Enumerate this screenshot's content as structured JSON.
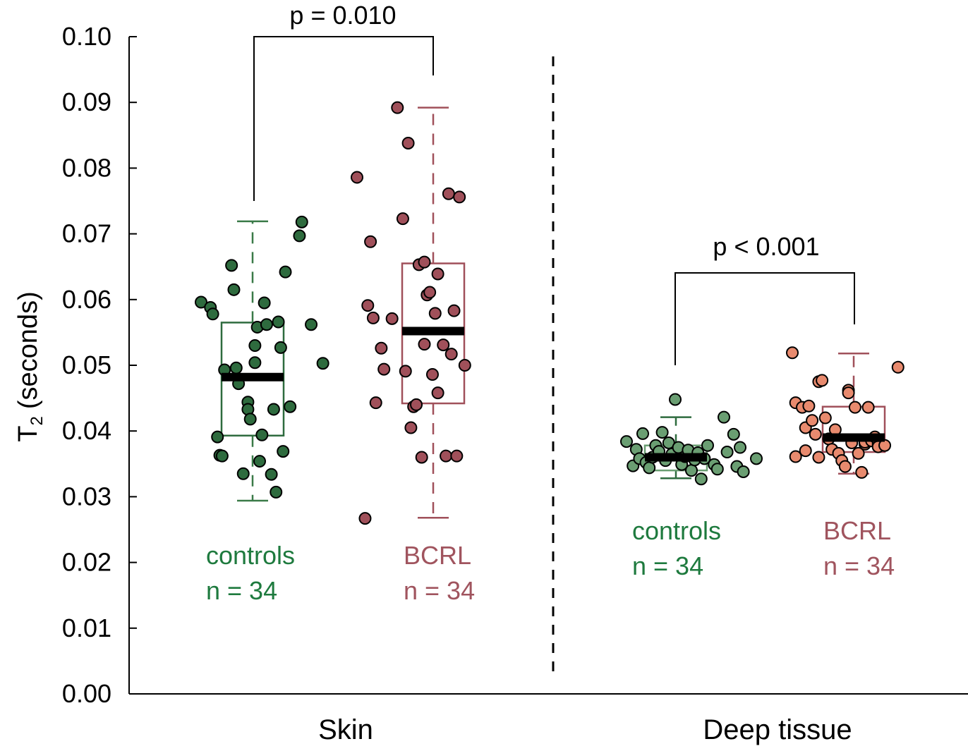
{
  "colors": {
    "skin_controls": "#2e6b3e",
    "skin_controls_text": "#1e7a3e",
    "skin_bcrl": "#a0505a",
    "skin_bcrl_text": "#a0545e",
    "deep_controls": "#6a9e72",
    "deep_controls_text": "#1e7a3e",
    "deep_bcrl": "#e88a6e",
    "deep_bcrl_box": "#a0505a",
    "deep_bcrl_text": "#a0545e"
  },
  "chart_data": {
    "type": "box",
    "ylabel_main": "T",
    "ylabel_sub": "2",
    "ylabel_rest": "(seconds)",
    "ylim": [
      0,
      0.1
    ],
    "yticks": [
      "0.00",
      "0.01",
      "0.02",
      "0.03",
      "0.04",
      "0.05",
      "0.06",
      "0.07",
      "0.08",
      "0.09",
      "0.10"
    ],
    "categories": [
      "Skin",
      "Deep tissue"
    ],
    "comparisons": [
      {
        "label": "p = 0.010",
        "group_a": "skin_controls",
        "group_b": "skin_bcrl"
      },
      {
        "label": "p < 0.001",
        "group_a": "deep_controls",
        "group_b": "deep_bcrl"
      }
    ],
    "groups": [
      {
        "id": "skin_controls",
        "category": "Skin",
        "name": "controls",
        "n_label": "n = 34",
        "box": {
          "q1": 0.0393,
          "median": 0.0482,
          "q3": 0.0565,
          "whisker_low": 0.0294,
          "whisker_high": 0.0719
        },
        "points": [
          {
            "x": 0.0,
            "y": 0.0596
          },
          {
            "x": 0.04,
            "y": 0.0588
          },
          {
            "x": 0.05,
            "y": 0.0578
          },
          {
            "x": 0.07,
            "y": 0.0391
          },
          {
            "x": 0.08,
            "y": 0.0363
          },
          {
            "x": 0.09,
            "y": 0.0362
          },
          {
            "x": 0.1,
            "y": 0.0493
          },
          {
            "x": 0.13,
            "y": 0.0652
          },
          {
            "x": 0.14,
            "y": 0.0615
          },
          {
            "x": 0.15,
            "y": 0.0496
          },
          {
            "x": 0.16,
            "y": 0.0472
          },
          {
            "x": 0.18,
            "y": 0.0335
          },
          {
            "x": 0.2,
            "y": 0.0444
          },
          {
            "x": 0.2,
            "y": 0.0433
          },
          {
            "x": 0.21,
            "y": 0.0418
          },
          {
            "x": 0.23,
            "y": 0.053
          },
          {
            "x": 0.23,
            "y": 0.0504
          },
          {
            "x": 0.24,
            "y": 0.0558
          },
          {
            "x": 0.25,
            "y": 0.0354
          },
          {
            "x": 0.26,
            "y": 0.0394
          },
          {
            "x": 0.27,
            "y": 0.0595
          },
          {
            "x": 0.28,
            "y": 0.0562
          },
          {
            "x": 0.3,
            "y": 0.0334
          },
          {
            "x": 0.31,
            "y": 0.0433
          },
          {
            "x": 0.32,
            "y": 0.0307
          },
          {
            "x": 0.33,
            "y": 0.0566
          },
          {
            "x": 0.34,
            "y": 0.0527
          },
          {
            "x": 0.35,
            "y": 0.0369
          },
          {
            "x": 0.36,
            "y": 0.0642
          },
          {
            "x": 0.38,
            "y": 0.0437
          },
          {
            "x": 0.42,
            "y": 0.0697
          },
          {
            "x": 0.43,
            "y": 0.0718
          },
          {
            "x": 0.47,
            "y": 0.0562
          },
          {
            "x": 0.52,
            "y": 0.0503
          }
        ]
      },
      {
        "id": "skin_bcrl",
        "category": "Skin",
        "name": "BCRL",
        "n_label": "n = 34",
        "box": {
          "q1": 0.0442,
          "median": 0.0552,
          "q3": 0.0655,
          "whisker_low": 0.0268,
          "whisker_high": 0.0892
        },
        "points": [
          {
            "x": 0.0,
            "y": 0.0786
          },
          {
            "x": 0.03,
            "y": 0.0267
          },
          {
            "x": 0.04,
            "y": 0.0591
          },
          {
            "x": 0.05,
            "y": 0.0688
          },
          {
            "x": 0.06,
            "y": 0.0572
          },
          {
            "x": 0.07,
            "y": 0.0443
          },
          {
            "x": 0.09,
            "y": 0.0526
          },
          {
            "x": 0.1,
            "y": 0.0494
          },
          {
            "x": 0.13,
            "y": 0.0571
          },
          {
            "x": 0.15,
            "y": 0.0892
          },
          {
            "x": 0.17,
            "y": 0.0723
          },
          {
            "x": 0.18,
            "y": 0.0491
          },
          {
            "x": 0.19,
            "y": 0.0838
          },
          {
            "x": 0.2,
            "y": 0.0405
          },
          {
            "x": 0.21,
            "y": 0.0437
          },
          {
            "x": 0.22,
            "y": 0.044
          },
          {
            "x": 0.23,
            "y": 0.0653
          },
          {
            "x": 0.24,
            "y": 0.036
          },
          {
            "x": 0.25,
            "y": 0.0657
          },
          {
            "x": 0.25,
            "y": 0.0532
          },
          {
            "x": 0.26,
            "y": 0.0607
          },
          {
            "x": 0.27,
            "y": 0.0611
          },
          {
            "x": 0.28,
            "y": 0.0486
          },
          {
            "x": 0.29,
            "y": 0.0579
          },
          {
            "x": 0.3,
            "y": 0.0639
          },
          {
            "x": 0.3,
            "y": 0.0458
          },
          {
            "x": 0.32,
            "y": 0.0531
          },
          {
            "x": 0.33,
            "y": 0.0362
          },
          {
            "x": 0.34,
            "y": 0.0761
          },
          {
            "x": 0.35,
            "y": 0.0517
          },
          {
            "x": 0.36,
            "y": 0.0583
          },
          {
            "x": 0.37,
            "y": 0.0362
          },
          {
            "x": 0.38,
            "y": 0.0756
          },
          {
            "x": 0.4,
            "y": 0.05
          }
        ]
      },
      {
        "id": "deep_controls",
        "category": "Deep tissue",
        "name": "controls",
        "n_label": "n = 34",
        "box": {
          "q1": 0.034,
          "median": 0.036,
          "q3": 0.0378,
          "whisker_low": 0.0328,
          "whisker_high": 0.0421
        },
        "outliers": [
          0.0447
        ],
        "points": [
          {
            "x": 0.0,
            "y": 0.0384
          },
          {
            "x": 0.02,
            "y": 0.0347
          },
          {
            "x": 0.03,
            "y": 0.0372
          },
          {
            "x": 0.04,
            "y": 0.0358
          },
          {
            "x": 0.05,
            "y": 0.0396
          },
          {
            "x": 0.06,
            "y": 0.0352
          },
          {
            "x": 0.07,
            "y": 0.0344
          },
          {
            "x": 0.08,
            "y": 0.036
          },
          {
            "x": 0.09,
            "y": 0.0378
          },
          {
            "x": 0.1,
            "y": 0.0369
          },
          {
            "x": 0.11,
            "y": 0.0398
          },
          {
            "x": 0.12,
            "y": 0.0355
          },
          {
            "x": 0.13,
            "y": 0.0382
          },
          {
            "x": 0.14,
            "y": 0.0365
          },
          {
            "x": 0.15,
            "y": 0.0448
          },
          {
            "x": 0.16,
            "y": 0.0375
          },
          {
            "x": 0.17,
            "y": 0.0349
          },
          {
            "x": 0.18,
            "y": 0.0361
          },
          {
            "x": 0.19,
            "y": 0.0371
          },
          {
            "x": 0.2,
            "y": 0.034
          },
          {
            "x": 0.21,
            "y": 0.0356
          },
          {
            "x": 0.22,
            "y": 0.0367
          },
          {
            "x": 0.23,
            "y": 0.0327
          },
          {
            "x": 0.24,
            "y": 0.0358
          },
          {
            "x": 0.25,
            "y": 0.0378
          },
          {
            "x": 0.27,
            "y": 0.0349
          },
          {
            "x": 0.28,
            "y": 0.0342
          },
          {
            "x": 0.3,
            "y": 0.0421
          },
          {
            "x": 0.31,
            "y": 0.0368
          },
          {
            "x": 0.33,
            "y": 0.0395
          },
          {
            "x": 0.34,
            "y": 0.0346
          },
          {
            "x": 0.35,
            "y": 0.0375
          },
          {
            "x": 0.36,
            "y": 0.0338
          },
          {
            "x": 0.4,
            "y": 0.0358
          }
        ]
      },
      {
        "id": "deep_bcrl",
        "category": "Deep tissue",
        "name": "BCRL",
        "n_label": "n = 34",
        "box": {
          "q1": 0.0368,
          "median": 0.039,
          "q3": 0.0437,
          "whisker_low": 0.0335,
          "whisker_high": 0.0518
        },
        "points": [
          {
            "x": 0.0,
            "y": 0.0519
          },
          {
            "x": 0.01,
            "y": 0.0443
          },
          {
            "x": 0.01,
            "y": 0.0361
          },
          {
            "x": 0.03,
            "y": 0.0436
          },
          {
            "x": 0.04,
            "y": 0.037
          },
          {
            "x": 0.04,
            "y": 0.0405
          },
          {
            "x": 0.05,
            "y": 0.0438
          },
          {
            "x": 0.06,
            "y": 0.0416
          },
          {
            "x": 0.07,
            "y": 0.0395
          },
          {
            "x": 0.08,
            "y": 0.0475
          },
          {
            "x": 0.08,
            "y": 0.036
          },
          {
            "x": 0.09,
            "y": 0.0477
          },
          {
            "x": 0.1,
            "y": 0.042
          },
          {
            "x": 0.11,
            "y": 0.0388
          },
          {
            "x": 0.12,
            "y": 0.0372
          },
          {
            "x": 0.13,
            "y": 0.0402
          },
          {
            "x": 0.14,
            "y": 0.0366
          },
          {
            "x": 0.15,
            "y": 0.0355
          },
          {
            "x": 0.16,
            "y": 0.0346
          },
          {
            "x": 0.17,
            "y": 0.0462
          },
          {
            "x": 0.17,
            "y": 0.0458
          },
          {
            "x": 0.18,
            "y": 0.0382
          },
          {
            "x": 0.19,
            "y": 0.0436
          },
          {
            "x": 0.2,
            "y": 0.0366
          },
          {
            "x": 0.21,
            "y": 0.0337
          },
          {
            "x": 0.22,
            "y": 0.038
          },
          {
            "x": 0.22,
            "y": 0.0383
          },
          {
            "x": 0.23,
            "y": 0.0436
          },
          {
            "x": 0.24,
            "y": 0.0385
          },
          {
            "x": 0.25,
            "y": 0.0391
          },
          {
            "x": 0.26,
            "y": 0.038
          },
          {
            "x": 0.26,
            "y": 0.0376
          },
          {
            "x": 0.28,
            "y": 0.0378
          },
          {
            "x": 0.32,
            "y": 0.0497
          }
        ]
      }
    ]
  }
}
